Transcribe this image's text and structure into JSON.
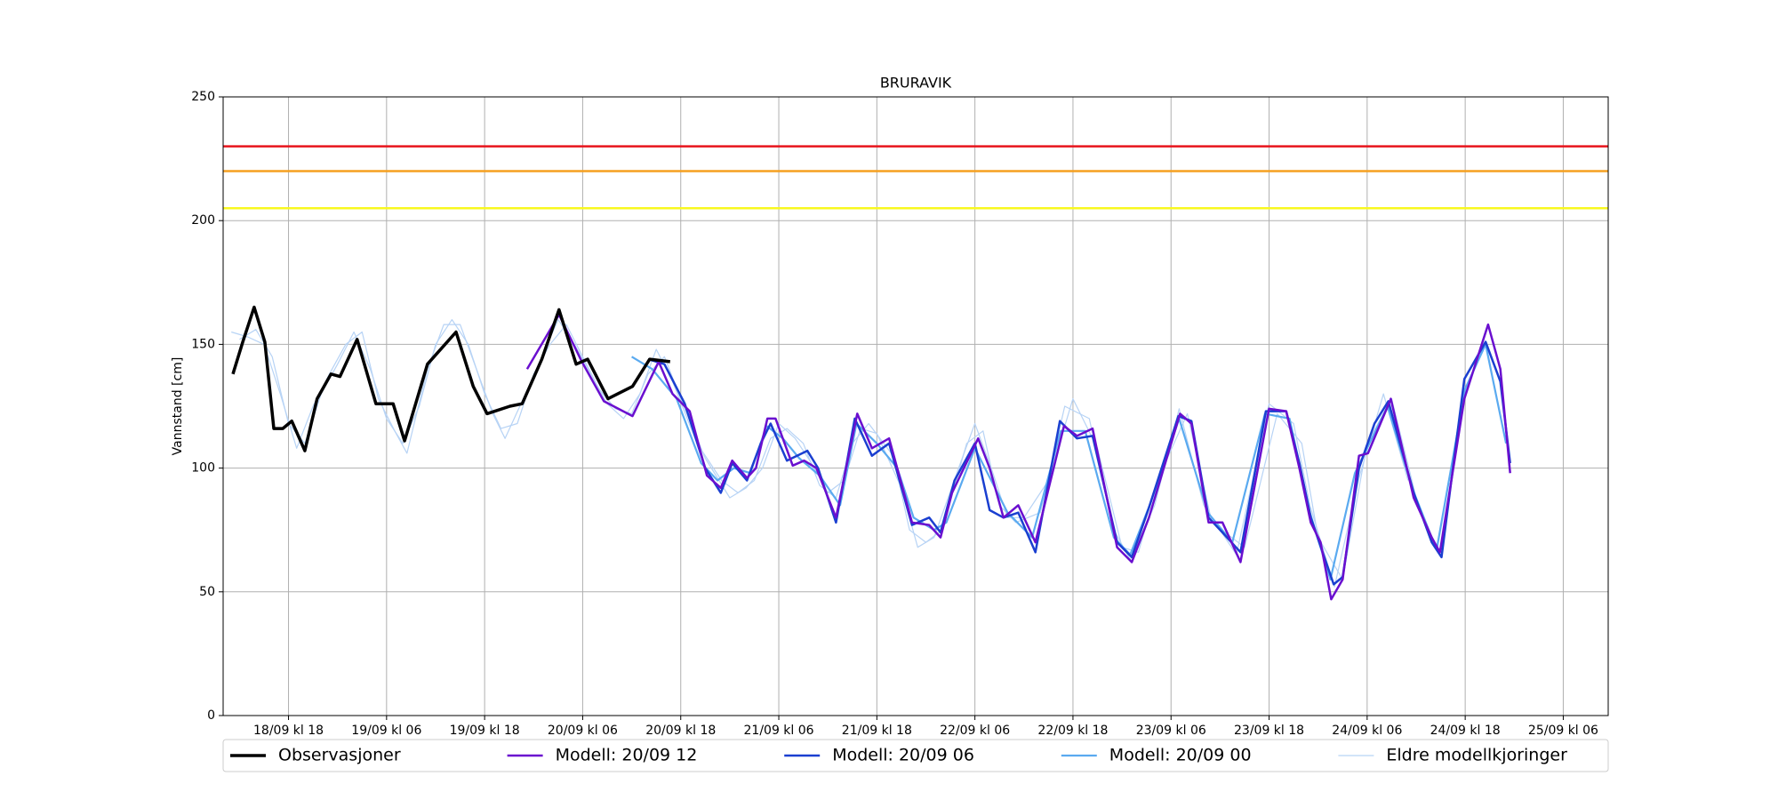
{
  "chart_data": {
    "type": "line",
    "title": "BRURAVIK",
    "y_label": "Vannstand [cm]",
    "ylim": [
      0,
      250
    ],
    "yticks": [
      0,
      50,
      100,
      150,
      200,
      250
    ],
    "xlim": [
      -8,
      161.5
    ],
    "xticks": [
      {
        "value": 0,
        "label": "18/09 kl 18"
      },
      {
        "value": 12,
        "label": "19/09 kl 06"
      },
      {
        "value": 24,
        "label": "19/09 kl 18"
      },
      {
        "value": 36,
        "label": "20/09 kl 06"
      },
      {
        "value": 48,
        "label": "20/09 kl 18"
      },
      {
        "value": 60,
        "label": "21/09 kl 06"
      },
      {
        "value": 72,
        "label": "21/09 kl 18"
      },
      {
        "value": 84,
        "label": "22/09 kl 06"
      },
      {
        "value": 96,
        "label": "22/09 kl 18"
      },
      {
        "value": 108,
        "label": "23/09 kl 06"
      },
      {
        "value": 120,
        "label": "23/09 kl 18"
      },
      {
        "value": 132,
        "label": "24/09 kl 06"
      },
      {
        "value": 144,
        "label": "24/09 kl 18"
      },
      {
        "value": 156,
        "label": "25/09 kl 06"
      }
    ],
    "grid": true,
    "hlines": [
      {
        "value": 230,
        "color": "#e8141c"
      },
      {
        "value": 220,
        "color": "#f5a020"
      },
      {
        "value": 205,
        "color": "#f8f820"
      }
    ],
    "series": [
      {
        "name": "Eldre modellkjoringer",
        "color": "#b7d3f5",
        "width": 1.2,
        "runs": [
          {
            "x": [
              -7,
              -5,
              -3,
              -1,
              1,
              3,
              5,
              7,
              9,
              11,
              13,
              14.5,
              17,
              19,
              21,
              23,
              25,
              26.5,
              29,
              31,
              33,
              35,
              37,
              39,
              41,
              43,
              45,
              47,
              50,
              53,
              55,
              57,
              59,
              61,
              63,
              65,
              67,
              69,
              71,
              74,
              76,
              78,
              80,
              83,
              85,
              87,
              89,
              92,
              95,
              98,
              101,
              103,
              106,
              109,
              112,
              116,
              120,
              123,
              125,
              128,
              131,
              134,
              137
            ],
            "values": [
              155,
              153,
              150,
              130,
              108,
              125,
              138,
              150,
              155,
              128,
              115,
              106,
              140,
              158,
              158,
              140,
              122,
              112,
              130,
              145,
              160,
              150,
              138,
              126,
              120,
              130,
              148,
              135,
              110,
              95,
              90,
              95,
              112,
              116,
              110,
              93,
              88,
              110,
              118,
              105,
              75,
              70,
              75,
              110,
              115,
              85,
              78,
              82,
              125,
              120,
              75,
              63,
              85,
              124,
              85,
              65,
              126,
              118,
              85,
              52,
              96,
              130,
              95
            ]
          },
          {
            "x": [
              -6,
              -4,
              -2,
              0,
              2,
              4,
              6,
              8,
              10,
              12,
              14,
              16,
              18,
              20,
              22,
              24,
              26,
              28,
              30,
              32,
              34,
              36,
              38,
              40,
              42,
              44,
              46,
              48,
              51,
              54,
              56,
              58,
              60,
              62,
              64,
              66,
              68,
              70,
              72,
              75,
              77,
              79,
              82,
              84,
              86,
              88,
              90,
              93,
              96,
              99,
              102,
              104,
              107,
              110,
              113,
              117,
              121,
              124,
              126,
              129,
              132,
              135,
              138
            ],
            "values": [
              152,
              156,
              145,
              118,
              110,
              130,
              142,
              155,
              140,
              120,
              110,
              125,
              150,
              160,
              150,
              130,
              116,
              118,
              138,
              150,
              158,
              145,
              132,
              124,
              122,
              138,
              145,
              128,
              104,
              88,
              92,
              100,
              118,
              112,
              102,
              90,
              95,
              116,
              114,
              92,
              68,
              72,
              100,
              118,
              100,
              80,
              80,
              95,
              128,
              108,
              68,
              66,
              100,
              122,
              78,
              68,
              122,
              110,
              72,
              55,
              110,
              128,
              88
            ]
          }
        ]
      },
      {
        "name": "Modell: 20/09 00",
        "color": "#5aaaf0",
        "width": 2.2,
        "x": [
          42.0,
          44.5,
          47.5,
          50.5,
          52.5,
          54.5,
          56.5,
          58.5,
          60.5,
          62.5,
          65.0,
          67.5,
          69.5,
          72.0,
          74.5,
          76.5,
          79.0,
          80.5,
          84.0,
          86.0,
          88.0,
          91.0,
          94.5,
          97.5,
          101.0,
          103.0,
          105.5,
          109.0,
          112.5,
          115.5,
          119.5,
          122.5,
          125.0,
          127.5,
          130.5,
          134.5,
          137.5,
          140.5,
          144.0,
          146.5,
          149.0
        ],
        "values": [
          145,
          140,
          128,
          102,
          95,
          100,
          98,
          117,
          112,
          104,
          97,
          85,
          118,
          110,
          100,
          80,
          75,
          78,
          108,
          95,
          82,
          72,
          115,
          115,
          72,
          65,
          86,
          120,
          82,
          70,
          122,
          120,
          82,
          55,
          98,
          125,
          92,
          67,
          132,
          150,
          110
        ]
      },
      {
        "name": "Modell: 20/09 06",
        "color": "#1a3fd0",
        "width": 2.5,
        "x": [
          44.0,
          46.0,
          48.5,
          51.0,
          52.9,
          54.3,
          56.1,
          57.8,
          59.0,
          61.0,
          63.5,
          64.8,
          67.0,
          69.3,
          71.4,
          73.5,
          76.3,
          78.4,
          79.8,
          81.5,
          84.0,
          85.8,
          87.5,
          89.3,
          91.4,
          94.4,
          96.5,
          98.4,
          101.4,
          103.2,
          105.3,
          108.9,
          110.5,
          112.6,
          114.3,
          116.5,
          119.6,
          122.1,
          123.7,
          125.1,
          127.9,
          129.0,
          131.0,
          132.9,
          134.6,
          137.7,
          139.9,
          141.1,
          143.9,
          146.5,
          148.3,
          149.5
        ],
        "values": [
          144,
          142,
          126,
          100,
          90,
          102,
          95,
          110,
          118,
          103,
          107,
          100,
          78,
          120,
          105,
          110,
          77,
          80,
          74,
          95,
          110,
          83,
          80,
          82,
          66,
          119,
          112,
          113,
          70,
          64,
          84,
          121,
          119,
          80,
          74,
          66,
          123,
          123,
          102,
          80,
          53,
          56,
          100,
          118,
          127,
          90,
          70,
          64,
          136,
          151,
          135,
          102
        ]
      },
      {
        "name": "Modell: 20/09 12",
        "color": "#6a0fcf",
        "width": 2.5,
        "x": [
          29.2,
          33.1,
          35.9,
          38.6,
          42.1,
          45.3,
          47.0,
          49.1,
          51.2,
          52.9,
          54.3,
          56.1,
          57.2,
          58.6,
          59.6,
          61.7,
          63.1,
          64.6,
          67.0,
          69.6,
          71.4,
          73.5,
          76.3,
          78.4,
          79.8,
          81.2,
          84.4,
          85.8,
          87.5,
          89.3,
          91.4,
          94.9,
          96.5,
          98.4,
          101.4,
          103.2,
          105.3,
          109.1,
          110.5,
          112.6,
          114.3,
          116.5,
          120.0,
          122.1,
          123.7,
          125.1,
          126.3,
          127.6,
          129.0,
          131.0,
          132.1,
          134.9,
          137.7,
          139.9,
          140.9,
          143.9,
          146.8,
          148.3,
          149.5
        ],
        "values": [
          140,
          162,
          143,
          127,
          121,
          143,
          130,
          123,
          97,
          92,
          103,
          96,
          100,
          120,
          120,
          101,
          103,
          100,
          80,
          122,
          108,
          112,
          78,
          77,
          72,
          90,
          112,
          100,
          80,
          85,
          70,
          117,
          113,
          116,
          68,
          62,
          80,
          122,
          118,
          78,
          78,
          62,
          124,
          123,
          100,
          78,
          70,
          47,
          55,
          105,
          106,
          128,
          88,
          72,
          66,
          128,
          158,
          140,
          98
        ]
      },
      {
        "name": "Observasjoner",
        "color": "#000000",
        "width": 3.5,
        "x": [
          -6.8,
          -5.6,
          -4.2,
          -2.9,
          -1.8,
          -0.7,
          0.4,
          2,
          3.5,
          5.2,
          6.3,
          8.4,
          10.7,
          12.8,
          14.2,
          17,
          20.5,
          22.6,
          24.3,
          27.1,
          28.6,
          31,
          33.1,
          35.2,
          36.6,
          39.1,
          42.1,
          44.2,
          46.7
        ],
        "values": [
          138,
          151,
          165,
          151,
          116,
          116,
          119,
          107,
          128,
          138,
          137,
          152,
          126,
          126,
          111,
          142,
          155,
          133,
          122,
          125,
          126,
          144,
          164,
          142,
          144,
          128,
          133,
          144,
          143
        ]
      }
    ],
    "legend_order": [
      4,
      3,
      2,
      1,
      0
    ]
  }
}
